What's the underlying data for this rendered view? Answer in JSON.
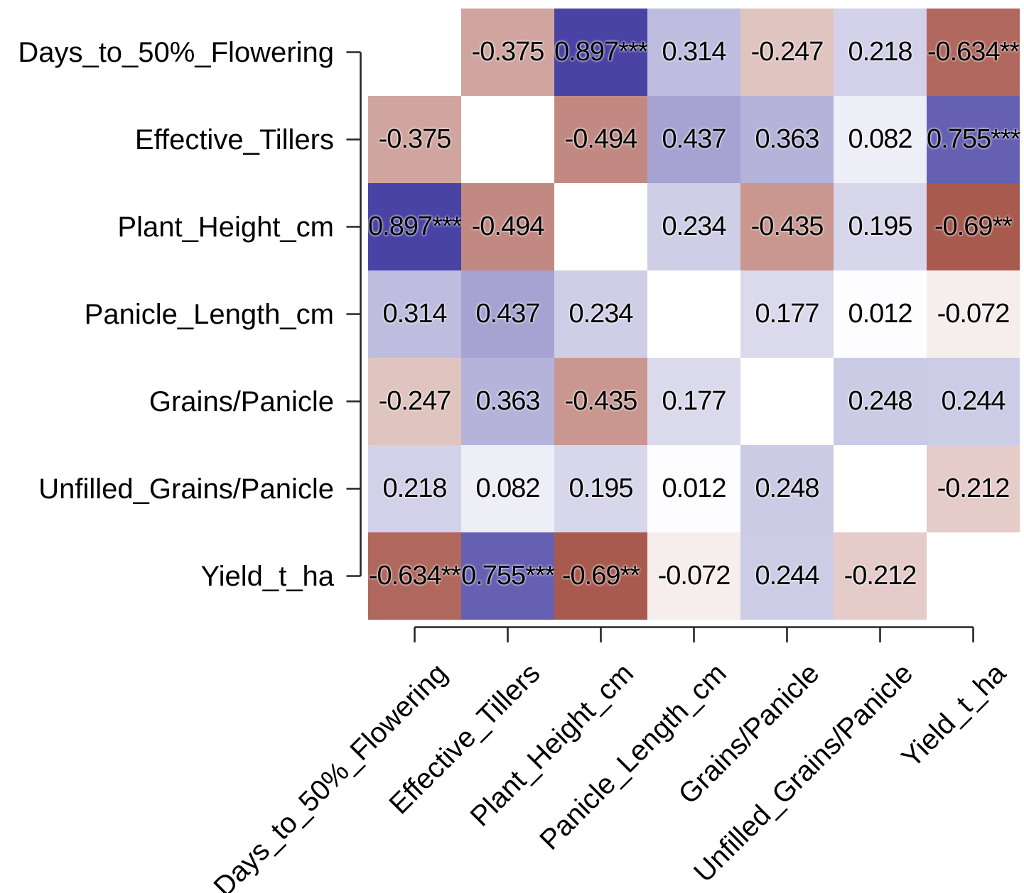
{
  "chart_data": {
    "type": "heatmap",
    "subtype": "correlation_matrix",
    "variables": [
      "Days_to_50%_Flowering",
      "Effective_Tillers",
      "Plant_Height_cm",
      "Panicle_Length_cm",
      "Grains/Panicle",
      "Unfilled_Grains/Panicle",
      "Yield_t_ha"
    ],
    "matrix_display": [
      [
        "",
        "-0.375",
        "0.897***",
        "0.314",
        "-0.247",
        "0.218",
        "-0.634**"
      ],
      [
        "-0.375",
        "",
        "-0.494",
        "0.437",
        "0.363",
        "0.082",
        "0.755***"
      ],
      [
        "0.897***",
        "-0.494",
        "",
        "0.234",
        "-0.435",
        "0.195",
        "-0.69**"
      ],
      [
        "0.314",
        "0.437",
        "0.234",
        "",
        "0.177",
        "0.012",
        "-0.072"
      ],
      [
        "-0.247",
        "0.363",
        "-0.435",
        "0.177",
        "",
        "0.248",
        "0.244"
      ],
      [
        "0.218",
        "0.082",
        "0.195",
        "0.012",
        "0.248",
        "",
        "-0.212"
      ],
      [
        "-0.634**",
        "0.755***",
        "-0.69**",
        "-0.072",
        "0.244",
        "-0.212",
        ""
      ]
    ],
    "diagonal_blank": true,
    "value_range": [
      -1,
      1
    ],
    "grid": "off",
    "legend": "none",
    "colors": {
      "positive_end": "#332d99",
      "negative_end": "#821000",
      "midpoint": "#ffffff",
      "axis": "#262626",
      "cell_text": "#000000"
    }
  }
}
